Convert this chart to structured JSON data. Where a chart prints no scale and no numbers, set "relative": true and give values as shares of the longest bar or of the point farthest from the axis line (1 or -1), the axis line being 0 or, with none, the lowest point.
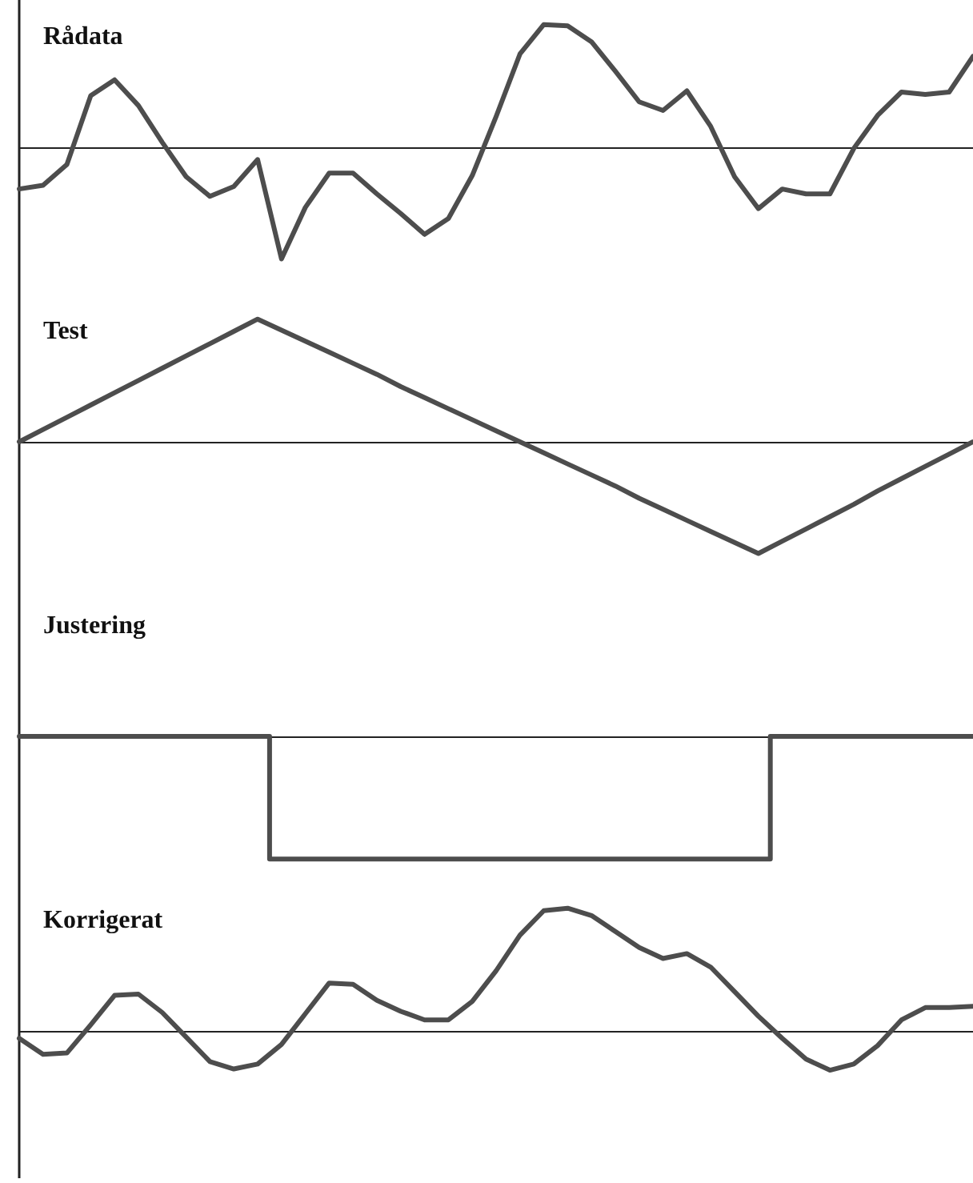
{
  "chart_data": [
    {
      "type": "line",
      "title": "Rådata",
      "relative": true,
      "color": "#4d4d4d",
      "categories": [
        null,
        null,
        null,
        null,
        null,
        null,
        null,
        null,
        null,
        null,
        null,
        null,
        null,
        null,
        null,
        null,
        null,
        null,
        null,
        null,
        null,
        null,
        null,
        null,
        null,
        null,
        null,
        null,
        null,
        null,
        null,
        null,
        null,
        null,
        null,
        null,
        null,
        null,
        null,
        null,
        null
      ],
      "values": [
        -0.34,
        -0.31,
        -0.14,
        0.42,
        0.55,
        0.34,
        0.04,
        -0.24,
        -0.4,
        -0.32,
        -0.1,
        -0.91,
        -0.49,
        -0.21,
        -0.21,
        -0.38,
        -0.54,
        -0.71,
        -0.58,
        -0.23,
        0.25,
        0.76,
        1,
        0.99,
        0.86,
        0.62,
        0.37,
        0.3,
        0.46,
        0.17,
        -0.24,
        -0.5,
        -0.34,
        -0.38,
        -0.38,
        -0.01,
        0.26,
        0.45,
        0.43,
        0.45,
        0.74
      ]
    },
    {
      "type": "line",
      "title": "Test",
      "relative": true,
      "color": "#4d4d4d",
      "categories": [
        null,
        null,
        null,
        null,
        null,
        null,
        null,
        null,
        null,
        null,
        null,
        null,
        null,
        null,
        null,
        null,
        null,
        null,
        null,
        null,
        null,
        null,
        null,
        null,
        null,
        null,
        null,
        null,
        null,
        null,
        null,
        null,
        null,
        null,
        null,
        null,
        null,
        null,
        null,
        null,
        null
      ],
      "values": [
        0,
        0.1,
        0.2,
        0.3,
        0.4,
        0.5,
        0.6,
        0.7,
        0.8,
        0.9,
        1,
        0.91,
        0.82,
        0.73,
        0.64,
        0.55,
        0.45,
        0.36,
        0.27,
        0.18,
        0.09,
        0,
        -0.09,
        -0.18,
        -0.27,
        -0.36,
        -0.46,
        -0.55,
        -0.64,
        -0.73,
        -0.82,
        -0.91,
        -0.81,
        -0.71,
        -0.61,
        -0.51,
        -0.4,
        -0.3,
        -0.2,
        -0.1,
        0
      ]
    },
    {
      "type": "step",
      "title": "Justering",
      "relative": true,
      "color": "#4d4d4d",
      "categories": [
        null,
        null,
        null,
        null,
        null,
        null,
        null,
        null,
        null,
        null,
        null,
        null,
        null,
        null,
        null,
        null,
        null,
        null,
        null,
        null,
        null,
        null,
        null,
        null,
        null,
        null,
        null,
        null,
        null,
        null,
        null,
        null,
        null,
        null,
        null,
        null,
        null,
        null,
        null,
        null,
        null
      ],
      "values": [
        0,
        0,
        0,
        0,
        0,
        0,
        0,
        0,
        0,
        0,
        0,
        -1,
        -1,
        -1,
        -1,
        -1,
        -1,
        -1,
        -1,
        -1,
        -1,
        -1,
        -1,
        -1,
        -1,
        -1,
        -1,
        -1,
        -1,
        -1,
        -1,
        -1,
        0,
        0,
        0,
        0,
        0,
        0,
        0,
        0,
        0
      ]
    },
    {
      "type": "line",
      "title": "Korrigerat",
      "relative": true,
      "color": "#4d4d4d",
      "categories": [
        null,
        null,
        null,
        null,
        null,
        null,
        null,
        null,
        null,
        null,
        null,
        null,
        null,
        null,
        null,
        null,
        null,
        null,
        null,
        null,
        null,
        null,
        null,
        null,
        null,
        null,
        null,
        null,
        null,
        null,
        null,
        null,
        null,
        null,
        null,
        null,
        null,
        null,
        null,
        null,
        null
      ],
      "values": [
        -0.06,
        -0.19,
        -0.18,
        0.05,
        0.29,
        0.3,
        0.15,
        -0.05,
        -0.25,
        -0.31,
        -0.27,
        -0.11,
        0.14,
        0.39,
        0.38,
        0.25,
        0.16,
        0.09,
        0.09,
        0.24,
        0.49,
        0.78,
        0.98,
        1,
        0.94,
        0.81,
        0.68,
        0.59,
        0.63,
        0.52,
        0.32,
        0.12,
        -0.06,
        -0.23,
        -0.32,
        -0.27,
        -0.12,
        0.09,
        0.19,
        0.19,
        0.2
      ]
    }
  ]
}
